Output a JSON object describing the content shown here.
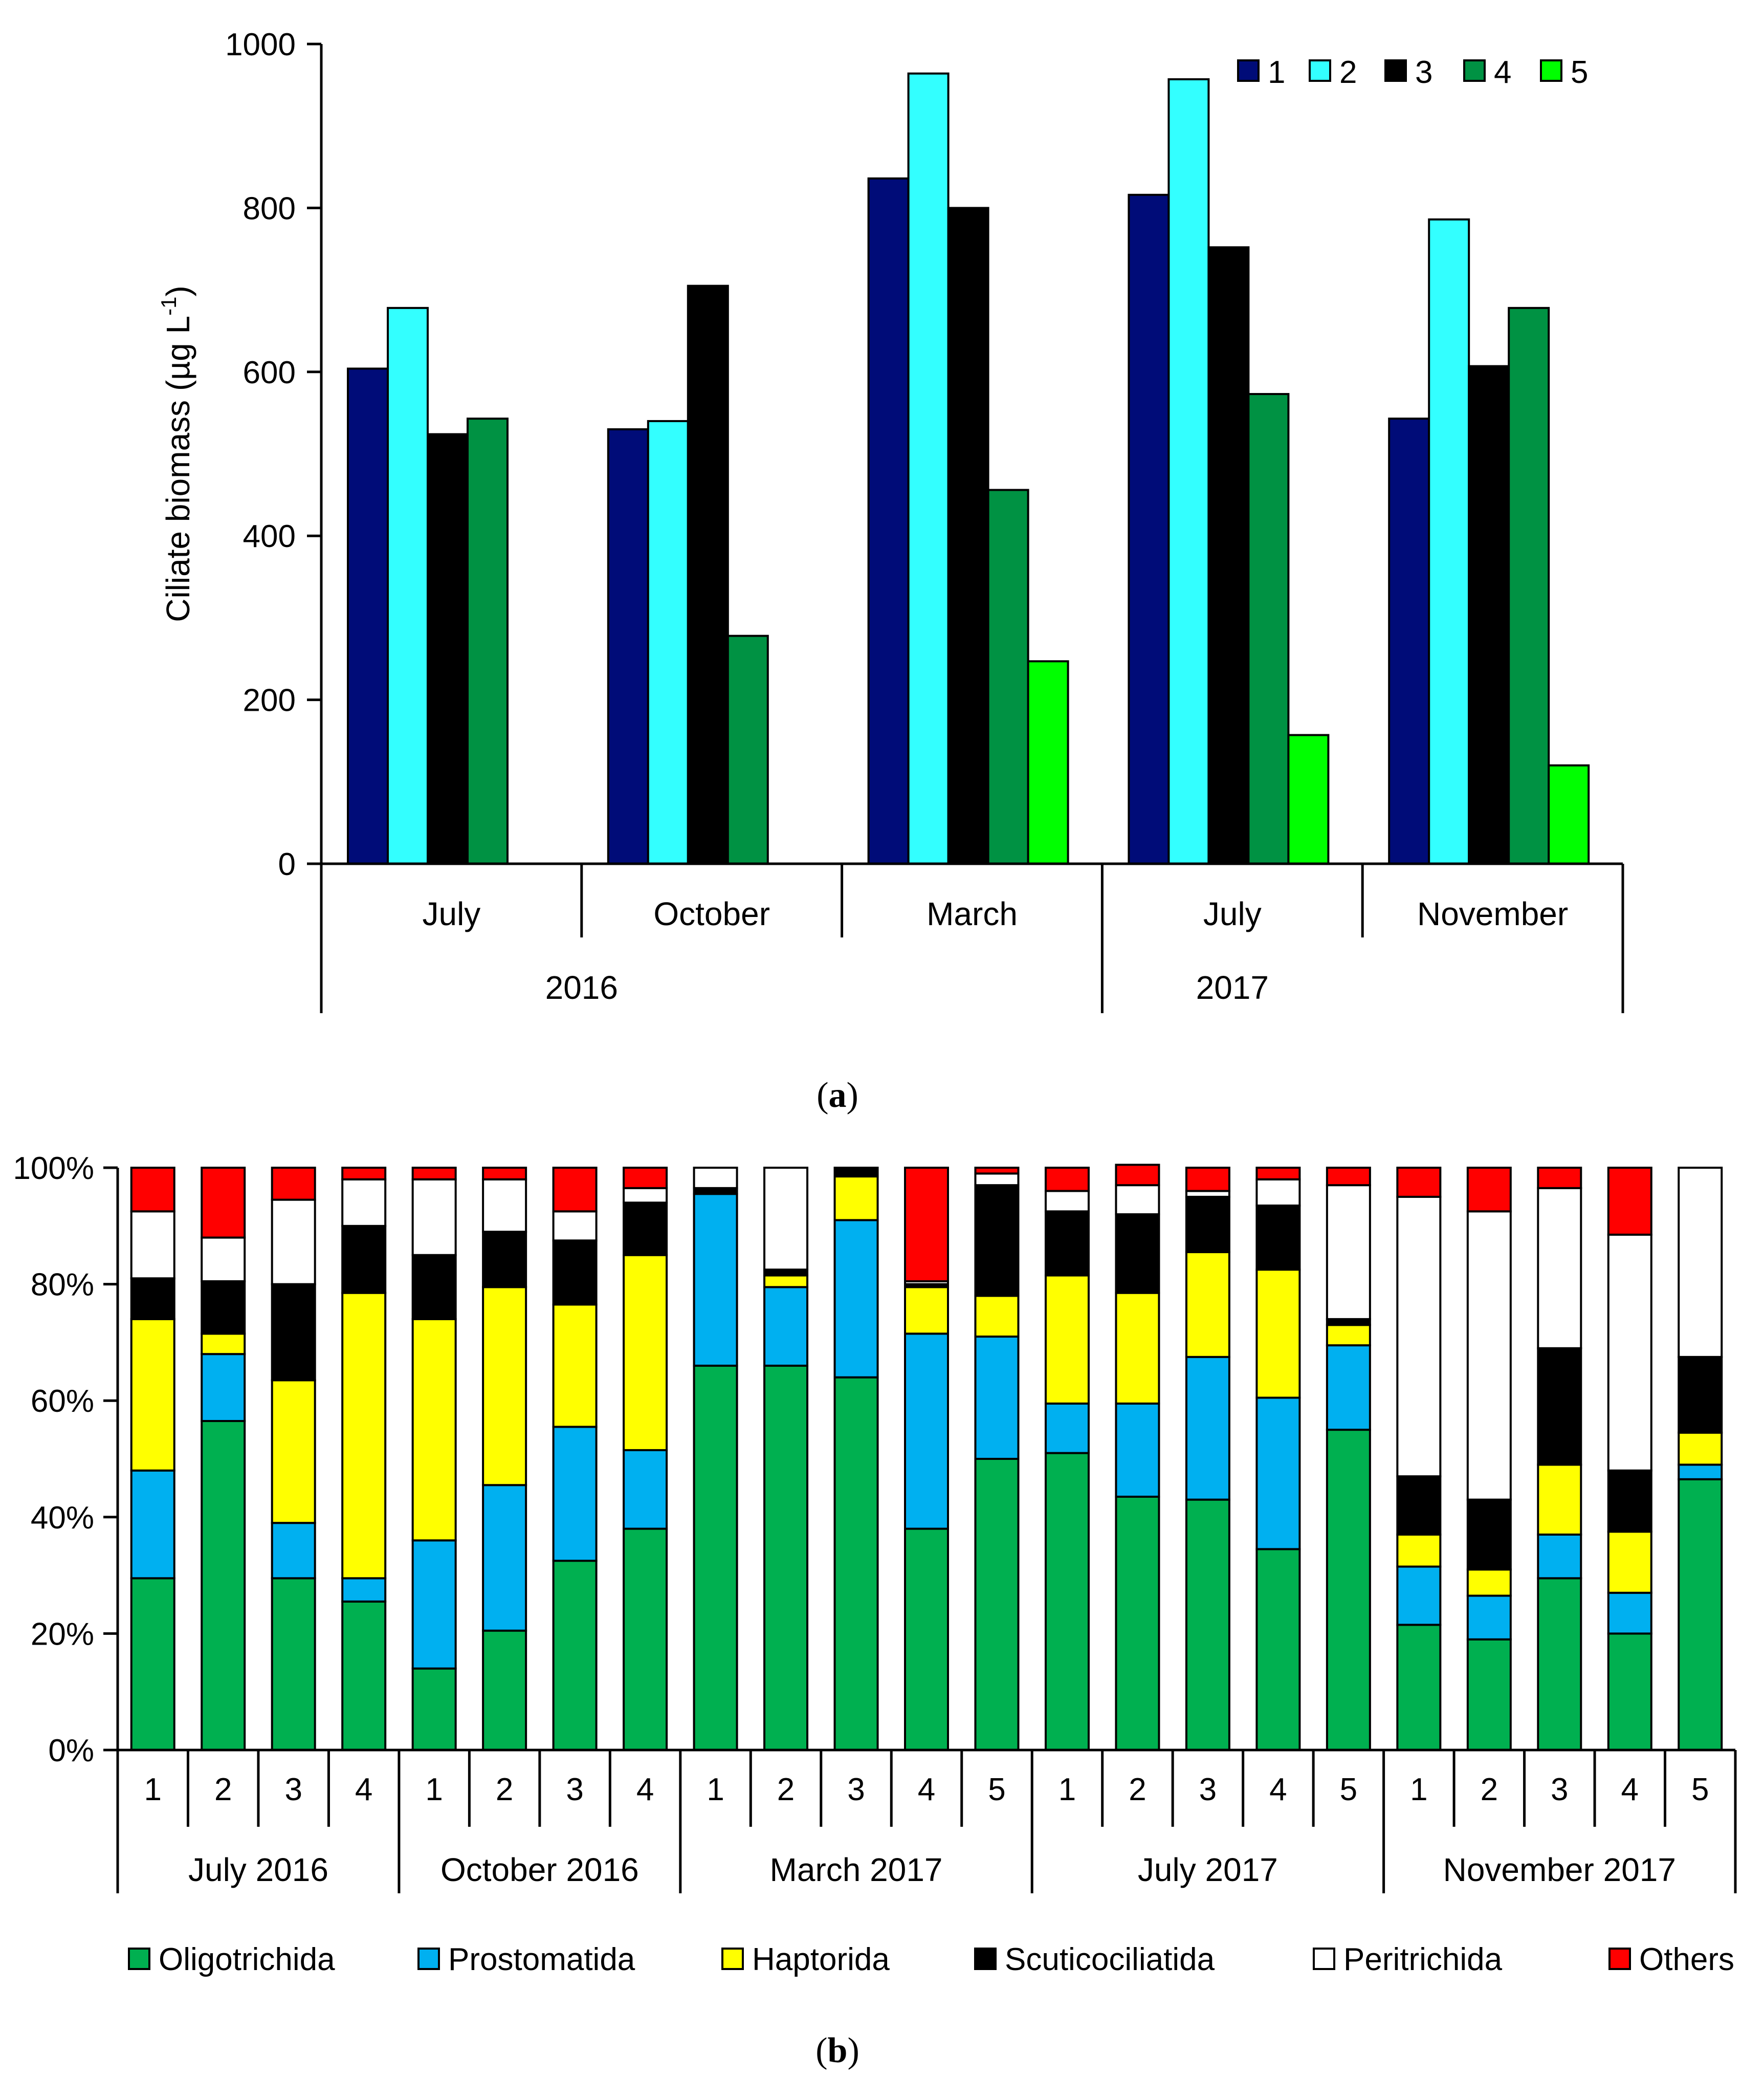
{
  "colors": {
    "site1": "#000C78",
    "site2": "#33FFFF",
    "site3": "#000000",
    "site4": "#009243",
    "site5": "#00FF00",
    "Oligotrichida": "#00B050",
    "Prostomatida": "#00B0F0",
    "Haptorida": "#FFFF00",
    "Scuticociliatida": "#000000",
    "Peritrichida": "#FFFFFF",
    "Others": "#FF0000"
  },
  "chart_data": [
    {
      "id": "a",
      "type": "bar",
      "caption_label": "a",
      "ylabel": "Ciliate biomass (µg L",
      "ylabel_sup": "-1",
      "ylabel_close": ")",
      "ylim": [
        0,
        1000
      ],
      "yticks": [
        "0",
        "200",
        "400",
        "600",
        "800",
        "1000"
      ],
      "years": [
        "2016",
        "2017"
      ],
      "categories": [
        "July",
        "October",
        "March",
        "July",
        "November"
      ],
      "series": [
        {
          "name": "1",
          "values": [
            604,
            530,
            836,
            816,
            543
          ]
        },
        {
          "name": "2",
          "values": [
            678,
            540,
            964,
            957,
            786
          ]
        },
        {
          "name": "3",
          "values": [
            524,
            705,
            800,
            752,
            607
          ]
        },
        {
          "name": "4",
          "values": [
            543,
            278,
            456,
            573,
            678
          ]
        },
        {
          "name": "5",
          "values": [
            null,
            null,
            247,
            157,
            120
          ]
        }
      ]
    },
    {
      "id": "b",
      "type": "bar",
      "stacked": "percent",
      "caption_label": "b",
      "ylim": [
        0,
        100
      ],
      "yticks": [
        "0%",
        "20%",
        "40%",
        "60%",
        "80%",
        "100%"
      ],
      "groups": [
        {
          "label": "July 2016",
          "sites": [
            "1",
            "2",
            "3",
            "4"
          ]
        },
        {
          "label": "October 2016",
          "sites": [
            "1",
            "2",
            "3",
            "4"
          ]
        },
        {
          "label": "March 2017",
          "sites": [
            "1",
            "2",
            "3",
            "4",
            "5"
          ]
        },
        {
          "label": "July 2017",
          "sites": [
            "1",
            "2",
            "3",
            "4",
            "5"
          ]
        },
        {
          "label": "November 2017",
          "sites": [
            "1",
            "2",
            "3",
            "4",
            "5"
          ]
        }
      ],
      "series": [
        {
          "name": "Oligotrichida",
          "values": [
            29.5,
            56.5,
            29.5,
            25.5,
            14,
            20.5,
            32.5,
            38,
            66,
            66,
            64,
            38,
            50,
            51,
            43.5,
            43,
            34.5,
            55,
            21.5,
            19,
            29.5,
            20,
            46.5
          ]
        },
        {
          "name": "Prostomatida",
          "values": [
            18.5,
            11.5,
            9.5,
            4,
            22,
            25,
            23,
            13.5,
            29.5,
            13.5,
            27,
            33.5,
            21,
            8.5,
            16,
            24.5,
            26,
            14.5,
            10,
            7.5,
            7.5,
            7,
            2.5
          ]
        },
        {
          "name": "Haptorida",
          "values": [
            26,
            3.5,
            24.5,
            49,
            38,
            34,
            21,
            33.5,
            0,
            2,
            7.5,
            8,
            7,
            22,
            19,
            18,
            22,
            3.5,
            5.5,
            4.5,
            12,
            10.5,
            5.5
          ]
        },
        {
          "name": "Scuticociliatida",
          "values": [
            7,
            9,
            16.5,
            11.5,
            11,
            9.5,
            11,
            9,
            1,
            1,
            1.5,
            0.5,
            19,
            11,
            13.5,
            9.5,
            11,
            1,
            10,
            12,
            20,
            10.5,
            13
          ]
        },
        {
          "name": "Peritrichida",
          "values": [
            11.5,
            7.5,
            14.5,
            8,
            13,
            9,
            5,
            2.5,
            3.5,
            17.5,
            0,
            0.5,
            2,
            3.5,
            5,
            1,
            4.5,
            23,
            48,
            49.5,
            27.5,
            40.5,
            32.5
          ]
        },
        {
          "name": "Others",
          "values": [
            7.5,
            12,
            5.5,
            2,
            2,
            2,
            7.5,
            3.5,
            0,
            0,
            0,
            19.5,
            1,
            4,
            3.5,
            4,
            2,
            3,
            5,
            7.5,
            3.5,
            11.5,
            0
          ]
        }
      ]
    }
  ]
}
